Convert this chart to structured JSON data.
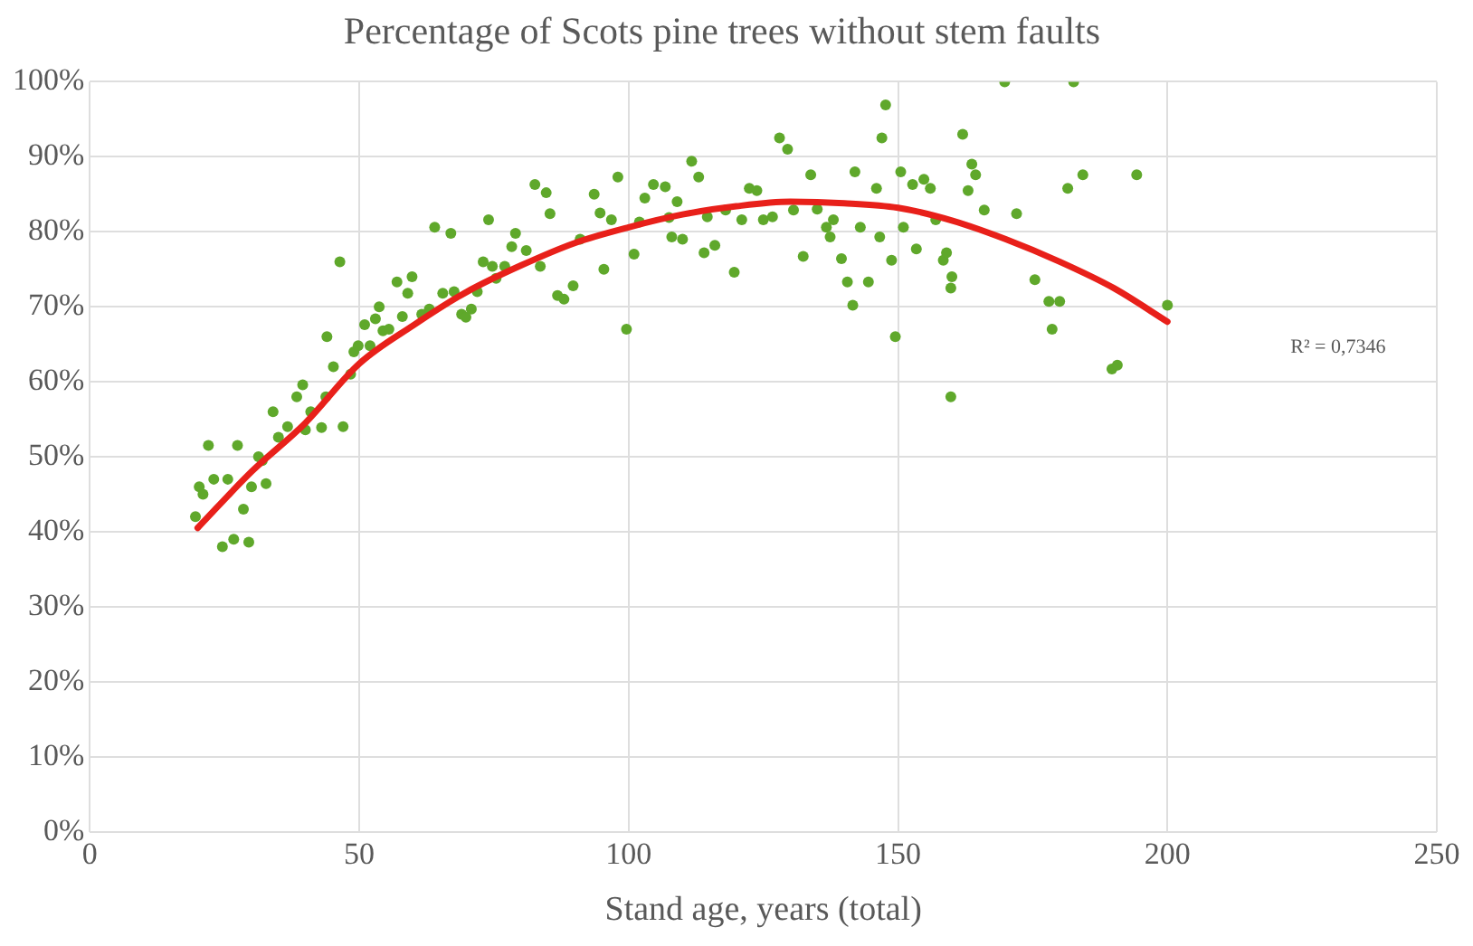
{
  "chart_data": {
    "type": "scatter",
    "title": "Percentage of Scots pine trees without stem faults",
    "xlabel": "Stand age, years (total)",
    "xlim": [
      0,
      250
    ],
    "xticks": [
      0,
      50,
      100,
      150,
      200,
      250
    ],
    "ylim": [
      0,
      100
    ],
    "yticks": [
      {
        "value": 0,
        "label": "0%"
      },
      {
        "value": 10,
        "label": "10%"
      },
      {
        "value": 20,
        "label": "20%"
      },
      {
        "value": 30,
        "label": "30%"
      },
      {
        "value": 40,
        "label": "40%"
      },
      {
        "value": 50,
        "label": "50%"
      },
      {
        "value": 60,
        "label": "60%"
      },
      {
        "value": 70,
        "label": "70%"
      },
      {
        "value": 80,
        "label": "80%"
      },
      {
        "value": 90,
        "label": "90%"
      },
      {
        "value": 100,
        "label": "100%"
      }
    ],
    "grid": true,
    "legend": false,
    "marker": "circle",
    "annotations": [
      "R² = 0,7346"
    ],
    "series": [
      {
        "color": "#5fa82b",
        "x": [
          19.6,
          20.3,
          22,
          21,
          23,
          24.6,
          25.6,
          26.7,
          27.4,
          28.5,
          29.5,
          30,
          31.3,
          32,
          32.7,
          34,
          35,
          36.7,
          38.4,
          39.5,
          40,
          41,
          43,
          43.8,
          44,
          45.2,
          46.4,
          47,
          48.4,
          49,
          49.8,
          51,
          52,
          53,
          53.7,
          54.4,
          55.5,
          57,
          58,
          59,
          59.8,
          61.6,
          63,
          64,
          65.5,
          67,
          67.6,
          69,
          69.8,
          70.8,
          71.9,
          73,
          74,
          74.7,
          75.4,
          77,
          78.3,
          79,
          81,
          82.6,
          83.6,
          84.7,
          85.4,
          86.8,
          88,
          89.7,
          91,
          93.6,
          94.7,
          95.4,
          96.8,
          98,
          99.6,
          101,
          102,
          103,
          104.6,
          106.8,
          107.5,
          108,
          109,
          110,
          111.7,
          113,
          114,
          114.6,
          116,
          118,
          119.6,
          121,
          122.4,
          123.8,
          125,
          126.7,
          128,
          129.5,
          130.6,
          132.4,
          133.8,
          135,
          136.7,
          137.4,
          138,
          139.5,
          140.6,
          141.6,
          142,
          143,
          144.5,
          146,
          146.6,
          147,
          147.7,
          148.8,
          149.5,
          150.5,
          151,
          152.7,
          153.4,
          154.8,
          156,
          157,
          158.4,
          159,
          159.8,
          160,
          159.8,
          162,
          163,
          163.7,
          164.4,
          166,
          169.8,
          172,
          175.4,
          178,
          178.6,
          180,
          181.5,
          182.6,
          184.3,
          189.7,
          190.7,
          194.3,
          200
        ],
        "values": [
          42,
          46,
          51.5,
          45,
          47,
          38,
          47,
          39,
          51.5,
          43,
          38.6,
          46,
          50,
          49.5,
          46.4,
          56,
          52.6,
          54,
          58,
          59.6,
          53.6,
          56,
          53.9,
          58,
          66,
          62,
          76,
          54,
          61,
          64,
          64.8,
          67.6,
          64.8,
          68.4,
          70,
          66.8,
          67,
          73.3,
          68.7,
          71.8,
          74,
          69,
          69.7,
          80.6,
          71.8,
          79.8,
          72,
          69,
          68.6,
          69.7,
          72,
          76,
          81.6,
          75.4,
          73.8,
          75.4,
          78,
          79.8,
          77.5,
          86.3,
          75.4,
          85.2,
          82.4,
          71.5,
          71,
          72.8,
          79,
          85,
          82.5,
          75,
          81.6,
          87.3,
          67,
          77,
          81.3,
          84.5,
          86.3,
          86,
          81.9,
          79.3,
          84,
          79,
          89.4,
          87.3,
          77.2,
          82,
          78.2,
          82.9,
          74.6,
          81.6,
          85.8,
          85.5,
          81.6,
          82,
          92.5,
          91,
          82.9,
          76.7,
          87.6,
          83,
          80.6,
          79.3,
          81.6,
          76.4,
          73.3,
          70.2,
          88,
          80.6,
          73.3,
          85.8,
          79.3,
          92.5,
          96.9,
          76.2,
          66,
          88,
          80.6,
          86.3,
          77.7,
          87,
          85.8,
          81.6,
          76.2,
          77.2,
          72.5,
          74,
          58,
          93,
          85.5,
          89,
          87.6,
          82.9,
          100,
          82.4,
          73.6,
          70.7,
          67,
          70.7,
          85.8,
          100,
          87.6,
          61.7,
          62.2,
          87.6,
          70.2
        ]
      },
      {
        "type": "line",
        "color": "#e8201a",
        "marker": "none",
        "line_style": "solid",
        "x": [
          20,
          30,
          40,
          50,
          60,
          70,
          80,
          90,
          100,
          110,
          120,
          130,
          140,
          150,
          160,
          170,
          180,
          190,
          200
        ],
        "values": [
          40.5,
          48,
          54.5,
          62.4,
          67.5,
          72,
          75.5,
          78.5,
          80.6,
          82.3,
          83.4,
          84,
          83.8,
          83.2,
          81.5,
          79,
          76,
          72.5,
          68
        ]
      }
    ]
  }
}
